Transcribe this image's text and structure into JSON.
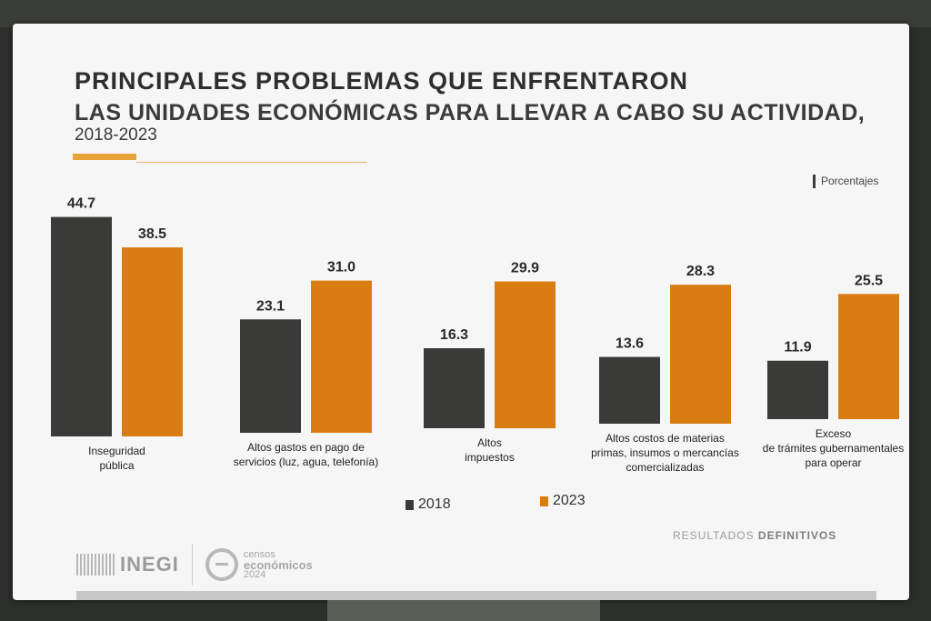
{
  "title_line1": "PRINCIPALES PROBLEMAS QUE ENFRENTARON",
  "title_line2": "LAS UNIDADES ECONÓMICAS PARA LLEVAR A CABO SU ACTIVIDAD,",
  "title_line3": "2018-2023",
  "units": "Porcentajes",
  "colors": {
    "s2018": "#3a3b38",
    "s2023": "#d97d12",
    "accent": "#e8a33b"
  },
  "chart_data": {
    "type": "bar",
    "title": "PRINCIPALES PROBLEMAS QUE ENFRENTARON LAS UNIDADES ECONÓMICAS PARA LLEVAR A CABO SU ACTIVIDAD, 2018-2023",
    "ylabel": "Porcentajes",
    "ylim": [
      0,
      50
    ],
    "grid": false,
    "legend_position": "bottom-center",
    "categories": [
      [
        "Inseguridad",
        "pública"
      ],
      [
        "Altos gastos en pago de",
        "servicios (luz, agua, telefonía)"
      ],
      [
        "Altos",
        "impuestos"
      ],
      [
        "Altos costos de materias",
        "primas, insumos o mercancías",
        "comercializadas"
      ],
      [
        "Exceso",
        "de trámites gubernamentales",
        "para operar"
      ]
    ],
    "series": [
      {
        "name": "2018",
        "values": [
          44.7,
          23.1,
          16.3,
          13.6,
          11.9
        ]
      },
      {
        "name": "2023",
        "values": [
          38.5,
          31.0,
          29.9,
          28.3,
          25.5
        ]
      }
    ],
    "value_labels": [
      [
        "44.7",
        "23.1",
        "16.3",
        "13.6",
        "11.9"
      ],
      [
        "38.5",
        "31.0",
        "29.9",
        "28.3",
        "25.5"
      ]
    ]
  },
  "legend": {
    "label_2018": "2018",
    "label_2023": "2023"
  },
  "footer": {
    "inegi": "INEGI",
    "censos_line1": "censos",
    "censos_line2": "económicos",
    "censos_line3": "2024",
    "results_light": "RESULTADOS",
    "results_bold": "DEFINITIVOS"
  }
}
